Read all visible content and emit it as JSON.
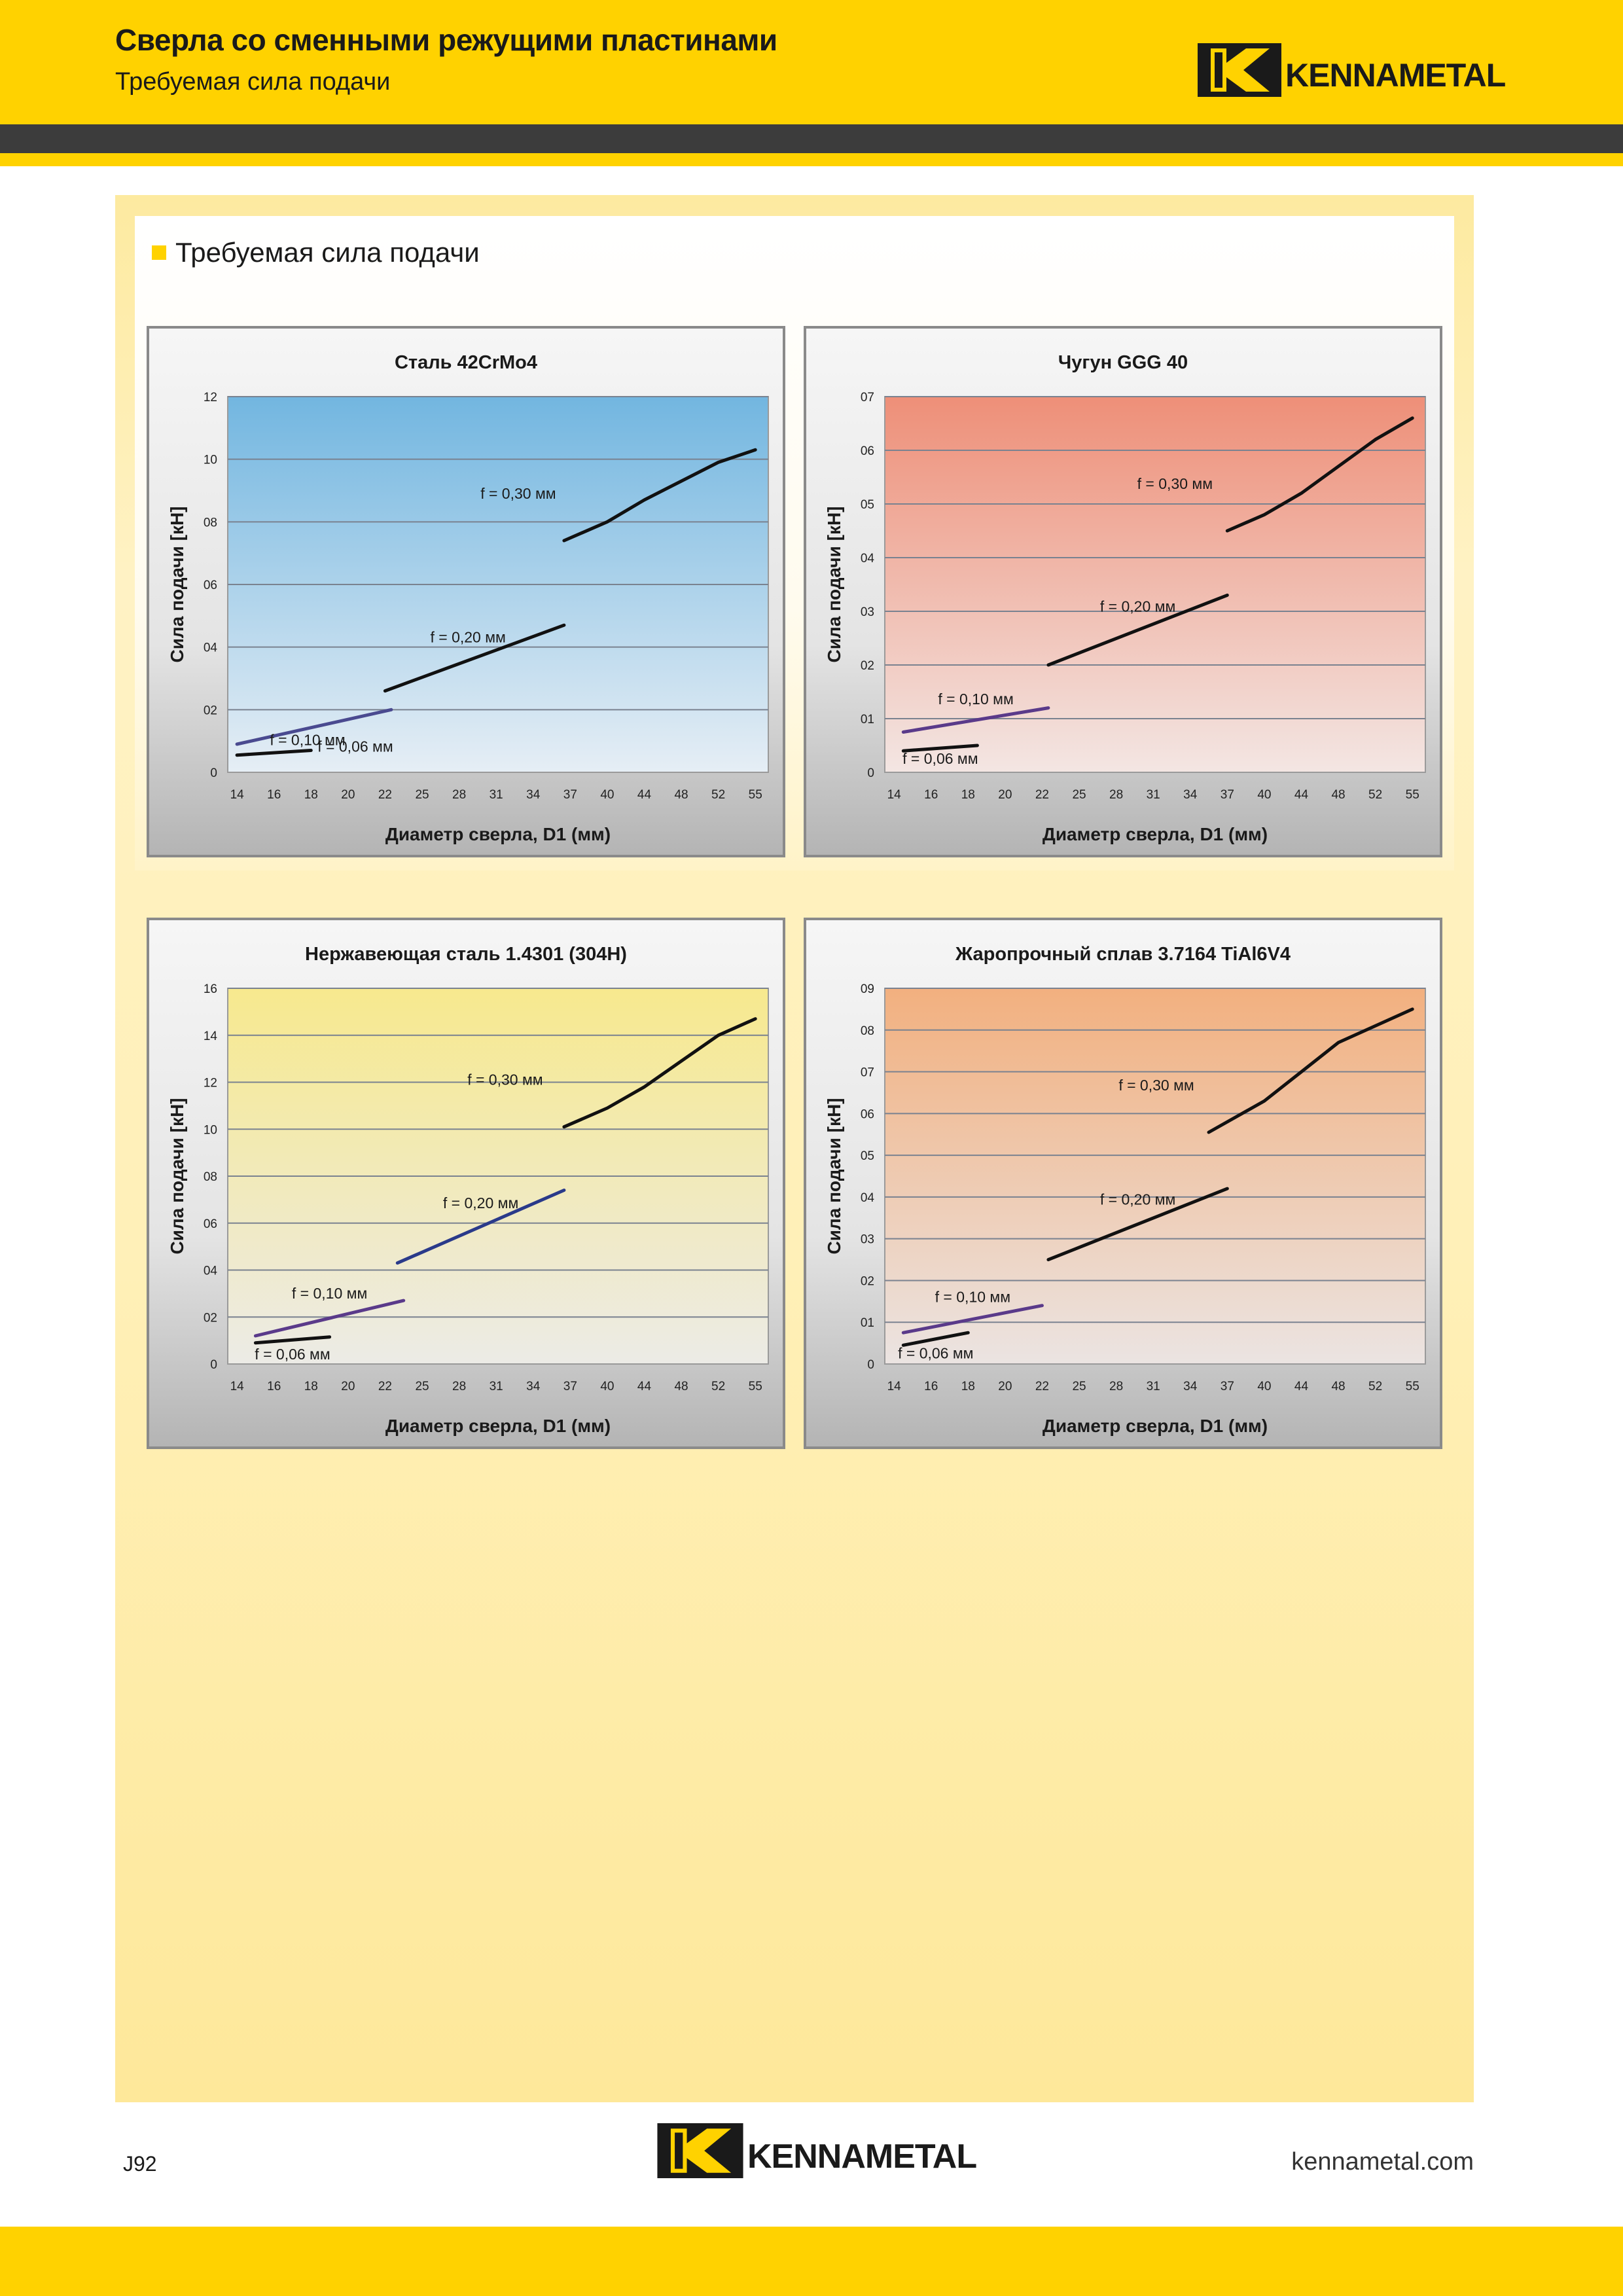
{
  "header": {
    "title": "Сверла со сменными режущими пластинами",
    "subtitle": "Требуемая сила подачи",
    "logo_text": "KENNAMETAL"
  },
  "section": {
    "heading": "Требуемая сила подачи"
  },
  "footer": {
    "page_number": "J92",
    "logo_text": "KENNAMETAL",
    "website": "kennametal.com"
  },
  "chart_data": [
    {
      "type": "line",
      "title": "Сталь 42CrMo4",
      "xlabel": "Диаметр сверла, D1 (мм)",
      "ylabel": "Сила подачи [кН]",
      "categories": [
        "14",
        "16",
        "18",
        "20",
        "22",
        "25",
        "28",
        "31",
        "34",
        "37",
        "40",
        "44",
        "48",
        "52",
        "55"
      ],
      "y_ticks": [
        "0",
        "02",
        "04",
        "06",
        "08",
        "10",
        "12"
      ],
      "ylim": [
        0,
        12
      ],
      "plot_gradient": [
        "#72b6e0",
        "#e6eef5"
      ],
      "grid": true,
      "series": [
        {
          "name": "f = 0,06 мм",
          "color": "#111111",
          "x": [
            14,
            18
          ],
          "y": [
            0.55,
            0.7
          ]
        },
        {
          "name": "f = 0,10 мм",
          "color": "#4a4a90",
          "x": [
            14,
            22.5
          ],
          "y": [
            0.9,
            2.0
          ]
        },
        {
          "name": "f = 0,20 мм",
          "color": "#111111",
          "x": [
            22,
            36.5
          ],
          "y": [
            2.6,
            4.7
          ]
        },
        {
          "name": "f = 0,30 мм",
          "color": "#111111",
          "x": [
            36.5,
            40,
            44,
            48,
            52,
            55
          ],
          "y": [
            7.4,
            8.0,
            8.7,
            9.3,
            9.9,
            10.3
          ]
        }
      ]
    },
    {
      "type": "line",
      "title": "Чугун GGG 40",
      "xlabel": "Диаметр сверла, D1 (мм)",
      "ylabel": "Сила подачи [кН]",
      "categories": [
        "14",
        "16",
        "18",
        "20",
        "22",
        "25",
        "28",
        "31",
        "34",
        "37",
        "40",
        "44",
        "48",
        "52",
        "55"
      ],
      "y_ticks": [
        "0",
        "01",
        "02",
        "03",
        "04",
        "05",
        "06",
        "07"
      ],
      "ylim": [
        0,
        7
      ],
      "plot_gradient": [
        "#ee8f78",
        "#f3e6e3"
      ],
      "grid": true,
      "series": [
        {
          "name": "f = 0,06 мм",
          "color": "#111111",
          "x": [
            14.5,
            18.5
          ],
          "y": [
            0.4,
            0.5
          ]
        },
        {
          "name": "f = 0,10 мм",
          "color": "#5a3a8a",
          "x": [
            14.5,
            22.5
          ],
          "y": [
            0.75,
            1.2
          ]
        },
        {
          "name": "f = 0,20 мм",
          "color": "#111111",
          "x": [
            22.5,
            37
          ],
          "y": [
            2.0,
            3.3
          ]
        },
        {
          "name": "f = 0,30 мм",
          "color": "#111111",
          "x": [
            37,
            40,
            44,
            48,
            52,
            55
          ],
          "y": [
            4.5,
            4.8,
            5.2,
            5.7,
            6.2,
            6.6
          ]
        }
      ]
    },
    {
      "type": "line",
      "title": "Нержавеющая сталь 1.4301 (304H)",
      "xlabel": "Диаметр сверла, D1 (мм)",
      "ylabel": "Сила подачи [кН]",
      "categories": [
        "14",
        "16",
        "18",
        "20",
        "22",
        "25",
        "28",
        "31",
        "34",
        "37",
        "40",
        "44",
        "48",
        "52",
        "55"
      ],
      "y_ticks": [
        "0",
        "02",
        "04",
        "06",
        "08",
        "10",
        "12",
        "14",
        "16"
      ],
      "ylim": [
        0,
        16
      ],
      "plot_gradient": [
        "#f7e98e",
        "#ecebe6"
      ],
      "grid": true,
      "series": [
        {
          "name": "f = 0,06 мм",
          "color": "#111111",
          "x": [
            15,
            19
          ],
          "y": [
            0.9,
            1.15
          ]
        },
        {
          "name": "f = 0,10 мм",
          "color": "#5a3a8a",
          "x": [
            15,
            23.5
          ],
          "y": [
            1.2,
            2.7
          ]
        },
        {
          "name": "f = 0,20 мм",
          "color": "#2a3a8a",
          "x": [
            23,
            36.5
          ],
          "y": [
            4.3,
            7.4
          ]
        },
        {
          "name": "f = 0,30 мм",
          "color": "#111111",
          "x": [
            36.5,
            40,
            44,
            48,
            52,
            55
          ],
          "y": [
            10.1,
            10.9,
            11.8,
            12.9,
            14.0,
            14.7
          ]
        }
      ]
    },
    {
      "type": "line",
      "title": "Жаропрочный сплав 3.7164 TiAl6V4",
      "xlabel": "Диаметр сверла, D1 (мм)",
      "ylabel": "Сила подачи [кН]",
      "categories": [
        "14",
        "16",
        "18",
        "20",
        "22",
        "25",
        "28",
        "31",
        "34",
        "37",
        "40",
        "44",
        "48",
        "52",
        "55"
      ],
      "y_ticks": [
        "0",
        "01",
        "02",
        "03",
        "04",
        "05",
        "06",
        "07",
        "08",
        "09"
      ],
      "ylim": [
        0,
        9
      ],
      "plot_gradient": [
        "#f2b07f",
        "#ebe4e2"
      ],
      "grid": true,
      "series": [
        {
          "name": "f = 0,06 мм",
          "color": "#111111",
          "x": [
            14.5,
            18
          ],
          "y": [
            0.45,
            0.75
          ]
        },
        {
          "name": "f = 0,10 мм",
          "color": "#5a3a8a",
          "x": [
            14.5,
            22
          ],
          "y": [
            0.75,
            1.4
          ]
        },
        {
          "name": "f = 0,20 мм",
          "color": "#111111",
          "x": [
            22.5,
            37
          ],
          "y": [
            2.5,
            4.2
          ]
        },
        {
          "name": "f = 0,30 мм",
          "color": "#111111",
          "x": [
            35.5,
            40,
            44,
            48,
            52,
            55
          ],
          "y": [
            5.55,
            6.3,
            7.0,
            7.7,
            8.1,
            8.5
          ]
        }
      ]
    }
  ]
}
